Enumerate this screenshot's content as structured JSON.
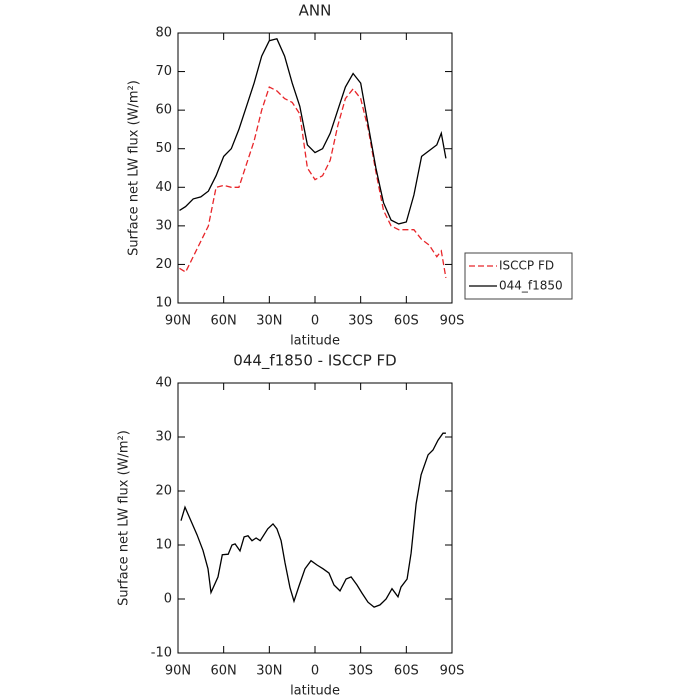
{
  "chart_data": [
    {
      "type": "line",
      "title": "ANN",
      "xlabel": "latitude",
      "ylabel": "Surface net LW flux (W/m²)",
      "x": [
        89,
        85,
        80,
        75,
        70,
        65,
        60,
        55,
        50,
        45,
        40,
        35,
        30,
        25,
        20,
        15,
        10,
        5,
        0,
        -5,
        -10,
        -15,
        -20,
        -25,
        -30,
        -35,
        -40,
        -45,
        -50,
        -55,
        -60,
        -65,
        -70,
        -75,
        -80,
        -83,
        -86
      ],
      "series": [
        {
          "name": "ISCCP FD",
          "color": "#e8262a",
          "dashed": true,
          "values": [
            19,
            18,
            22,
            26,
            30,
            40,
            40.5,
            40,
            40,
            46,
            52,
            60,
            66,
            65,
            63,
            62,
            59,
            45,
            42,
            43,
            47,
            56,
            63,
            65.5,
            63,
            55,
            44,
            34,
            30,
            29,
            29,
            29,
            26.5,
            25,
            22,
            23.5,
            16.5
          ]
        },
        {
          "name": "044_f1850",
          "color": "#000000",
          "dashed": false,
          "values": [
            34,
            35,
            37,
            37.5,
            39,
            43,
            48,
            50,
            55,
            61,
            67,
            74,
            78,
            78.5,
            74,
            67,
            61,
            51,
            49,
            50,
            54,
            60,
            66,
            69.5,
            67,
            56,
            45,
            36,
            31.5,
            30.5,
            31,
            38,
            48,
            49.5,
            51,
            54,
            47.5
          ]
        }
      ],
      "xlim": [
        90,
        -90
      ],
      "xticks": [
        {
          "value": 90,
          "label": "90N"
        },
        {
          "value": 60,
          "label": "60N"
        },
        {
          "value": 30,
          "label": "30N"
        },
        0,
        {
          "value": -30,
          "label": "30S"
        },
        {
          "value": -60,
          "label": "60S"
        },
        {
          "value": -90,
          "label": "90S"
        }
      ],
      "ylim": [
        10,
        80
      ],
      "yticks": [
        10,
        20,
        30,
        40,
        50,
        60,
        70,
        80
      ],
      "legend": "right"
    },
    {
      "type": "line",
      "title": "044_f1850 - ISCCP FD",
      "xlabel": "latitude",
      "ylabel": "Surface net LW flux (W/m²)",
      "x": [
        88,
        85.4,
        82,
        77.5,
        73.6,
        70.3,
        68.3,
        63.7,
        60.9,
        57,
        54.5,
        52.5,
        49.3,
        46.6,
        44,
        41.4,
        38.7,
        36,
        31,
        27.6,
        25,
        22.3,
        19.7,
        16.4,
        13.8,
        10.5,
        6.6,
        2.6,
        -1.3,
        -5.3,
        -9.2,
        -12.5,
        -16.4,
        -20.4,
        -23.7,
        -27.6,
        -30.9,
        -34.8,
        -38.8,
        -42.7,
        -46.7,
        -50.6,
        -54.5,
        -56.5,
        -60.5,
        -63.1,
        -66.4,
        -69.7,
        -74.3,
        -77.5,
        -80.8,
        -84.1,
        -86
      ],
      "series": [
        {
          "color": "#000000",
          "dashed": false,
          "values": [
            14.5,
            17,
            14.8,
            11.9,
            9,
            5.6,
            1.2,
            4.1,
            8.2,
            8.3,
            10,
            10.2,
            8.9,
            11.5,
            11.7,
            10.8,
            11.3,
            10.8,
            13,
            13.9,
            13,
            10.8,
            6.7,
            2.1,
            -0.4,
            2.4,
            5.6,
            7.1,
            6.3,
            5.6,
            4.8,
            2.6,
            1.5,
            3.7,
            4.1,
            2.6,
            1.1,
            -0.6,
            -1.5,
            -1.1,
            0,
            1.9,
            0.4,
            2.2,
            3.7,
            8.5,
            17.6,
            23,
            26.7,
            27.6,
            29.4,
            30.7,
            30.7
          ]
        }
      ],
      "xlim": [
        90,
        -90
      ],
      "xticks": [
        {
          "value": 90,
          "label": "90N"
        },
        {
          "value": 60,
          "label": "60N"
        },
        {
          "value": 30,
          "label": "30N"
        },
        0,
        {
          "value": -30,
          "label": "30S"
        },
        {
          "value": -60,
          "label": "60S"
        },
        {
          "value": -90,
          "label": "90S"
        }
      ],
      "ylim": [
        -10,
        40
      ],
      "yticks": [
        -10,
        0,
        10,
        20,
        30,
        40
      ]
    }
  ]
}
